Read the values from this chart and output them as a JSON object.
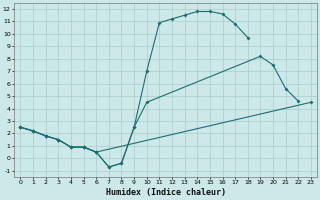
{
  "xlabel": "Humidex (Indice chaleur)",
  "xlim": [
    -0.5,
    23.5
  ],
  "ylim": [
    -1.5,
    12.5
  ],
  "xticks": [
    0,
    1,
    2,
    3,
    4,
    5,
    6,
    7,
    8,
    9,
    10,
    11,
    12,
    13,
    14,
    15,
    16,
    17,
    18,
    19,
    20,
    21,
    22,
    23
  ],
  "yticks": [
    -1,
    0,
    1,
    2,
    3,
    4,
    5,
    6,
    7,
    8,
    9,
    10,
    11,
    12
  ],
  "bg_color": "#cce8e8",
  "grid_color": "#aacccc",
  "line_color": "#1a7070",
  "line1_x": [
    0,
    1,
    2,
    3,
    4,
    5,
    6,
    7,
    8,
    9,
    10,
    11,
    12,
    13,
    14,
    15,
    16,
    17,
    18
  ],
  "line1_y": [
    2.5,
    2.2,
    1.8,
    1.5,
    0.9,
    0.9,
    0.5,
    -0.7,
    -0.4,
    2.5,
    7.0,
    10.9,
    11.2,
    11.5,
    11.8,
    11.8,
    11.6,
    10.8,
    9.7
  ],
  "line2_x": [
    0,
    1,
    2,
    3,
    4,
    5,
    6,
    7,
    8,
    9,
    10,
    19,
    20,
    21,
    22
  ],
  "line2_y": [
    2.5,
    2.2,
    1.8,
    1.5,
    0.9,
    0.9,
    0.5,
    -0.7,
    -0.4,
    2.5,
    4.5,
    8.2,
    7.5,
    5.6,
    4.6
  ],
  "line2_break_after": 10,
  "line3_x": [
    0,
    1,
    2,
    3,
    4,
    5,
    6,
    23
  ],
  "line3_y": [
    2.5,
    2.2,
    1.8,
    1.5,
    0.9,
    0.9,
    0.5,
    4.5
  ]
}
